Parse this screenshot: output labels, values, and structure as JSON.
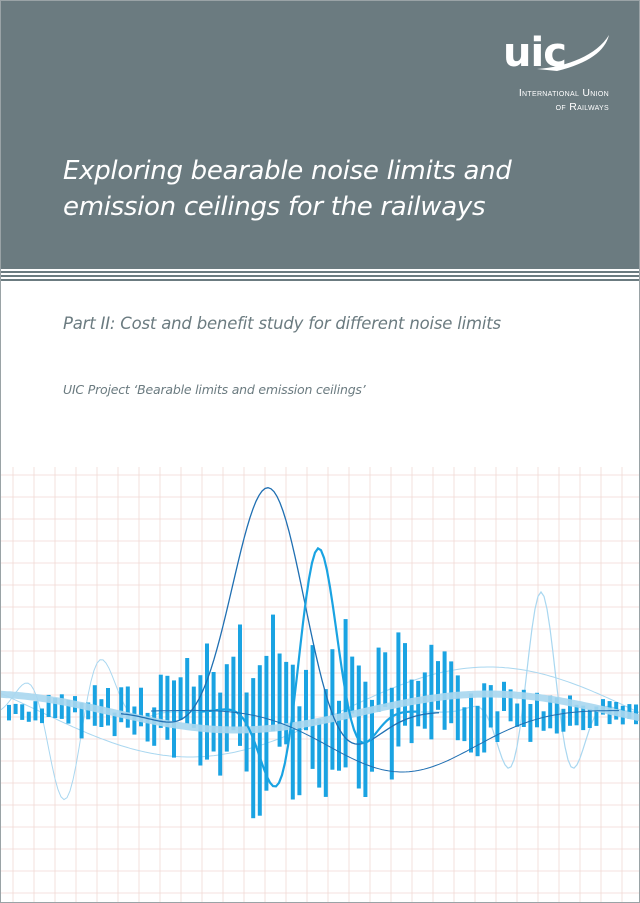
{
  "logo": {
    "wordmark": "uic",
    "line1": "International Union",
    "line2": "of Railways"
  },
  "title": {
    "line1": "Exploring bearable noise limits and",
    "line2": "emission ceilings for the railways"
  },
  "subtitle": "Part II: Cost and benefit study for different noise limits",
  "project": "UIC Project ‘Bearable limits and emission ceilings’",
  "colors": {
    "band": "#6b7b80",
    "bars": "#1aa3e2",
    "grid": "#f0d9d4",
    "wave_dark": "#1f6fb2",
    "wave_light": "#a9d7f0"
  }
}
